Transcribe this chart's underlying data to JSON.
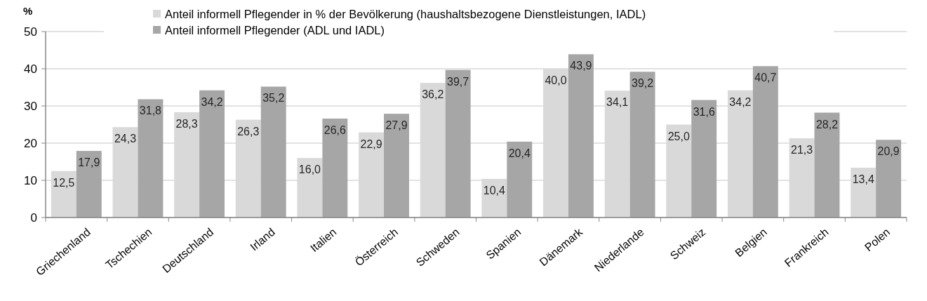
{
  "chart_data": {
    "type": "bar",
    "ylabel": "%",
    "categories": [
      "Griechenland",
      "Tschechien",
      "Deutschland",
      "Irland",
      "Italien",
      "Österreich",
      "Schweden",
      "Spanien",
      "Dänemark",
      "Niederlande",
      "Schweiz",
      "Belgien",
      "Frankreich",
      "Polen"
    ],
    "series": [
      {
        "name": "Anteil informell Pflegender in % der Bevölkerung (haushaltsbezogene Dienstleistungen, IADL)",
        "color": "#d9d9d9",
        "values": [
          12.5,
          24.3,
          28.3,
          26.3,
          16.0,
          22.9,
          36.2,
          10.4,
          40.0,
          34.1,
          25.0,
          34.2,
          21.3,
          13.4
        ],
        "value_labels": [
          "12,5",
          "24,3",
          "28,3",
          "26,3",
          "16,0",
          "22,9",
          "36,2",
          "10,4",
          "40,0",
          "34,1",
          "25,0",
          "34,2",
          "21,3",
          "13,4"
        ]
      },
      {
        "name": "Anteil informell Pflegender (ADL und IADL)",
        "color": "#a6a6a6",
        "values": [
          17.9,
          31.8,
          34.2,
          35.2,
          26.6,
          27.9,
          39.7,
          20.4,
          43.9,
          39.2,
          31.6,
          40.7,
          28.2,
          20.9
        ],
        "value_labels": [
          "17,9",
          "31,8",
          "34,2",
          "35,2",
          "26,6",
          "27,9",
          "39,7",
          "20,4",
          "43,9",
          "39,2",
          "31,6",
          "40,7",
          "28,2",
          "20,9"
        ]
      }
    ],
    "ylim": [
      0,
      50
    ],
    "yticks": [
      0,
      10,
      20,
      30,
      40,
      50
    ],
    "grid": "y",
    "legend": "top"
  }
}
